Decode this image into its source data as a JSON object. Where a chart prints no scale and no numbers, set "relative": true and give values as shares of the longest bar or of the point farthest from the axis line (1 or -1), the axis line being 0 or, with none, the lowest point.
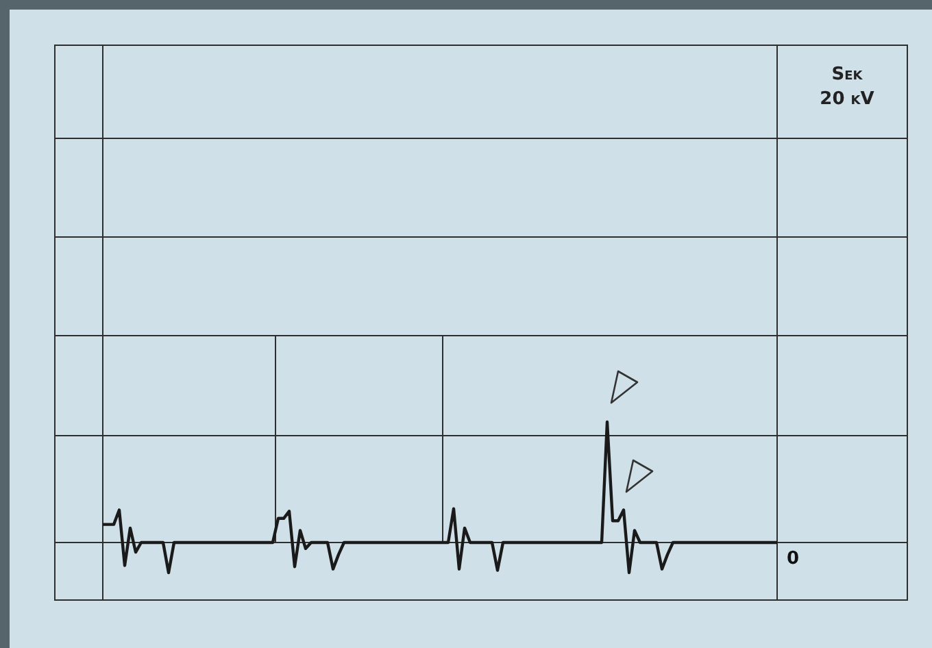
{
  "chart_data": {
    "type": "line",
    "title": "Sek",
    "subtitle": "20 kV",
    "annotations": [
      "0"
    ],
    "relative": true,
    "grid": true,
    "legend": false,
    "marker": "none",
    "line_style": "solid",
    "categories": [
      null,
      null,
      null,
      null,
      null,
      null,
      null,
      null,
      null,
      null,
      null,
      null,
      null,
      null,
      null,
      null,
      null,
      null,
      null,
      null,
      null,
      null,
      null,
      null,
      null,
      null,
      null,
      null,
      null,
      null,
      null,
      null,
      null,
      null,
      null,
      null,
      null,
      null,
      null,
      null,
      null,
      null,
      null,
      null,
      null,
      null,
      null,
      null,
      null,
      null,
      null,
      null,
      null,
      null,
      null,
      null,
      null,
      null,
      null,
      null,
      null,
      null,
      null,
      null,
      null,
      null,
      null,
      null,
      null,
      null,
      null,
      null,
      null,
      null,
      null,
      null,
      null,
      null,
      null,
      null,
      null,
      null,
      null,
      null,
      null,
      null,
      null,
      null,
      null,
      null,
      null,
      null,
      null,
      null,
      null,
      null,
      null,
      null,
      null,
      null,
      null,
      null,
      null,
      null,
      null,
      null,
      null,
      null,
      null,
      null,
      null,
      null,
      null,
      null,
      null,
      null,
      null,
      null,
      null,
      null,
      null,
      null,
      null,
      null
    ],
    "series": [
      {
        "color": "#1a1a1a",
        "values": [
          0.15,
          0.15,
          0.15,
          0.27,
          -0.19,
          0.12,
          -0.08,
          0,
          0,
          0,
          0,
          0,
          -0.25,
          0,
          0,
          0,
          0,
          0,
          0,
          0,
          0,
          0,
          0,
          0,
          0,
          0,
          0,
          0,
          0,
          0,
          0,
          0,
          0.2,
          0.2,
          0.26,
          -0.2,
          0.1,
          -0.05,
          0,
          0,
          0,
          0,
          -0.22,
          -0.1,
          0,
          0,
          0,
          0,
          0,
          0,
          0,
          0,
          0,
          0,
          0,
          0,
          0,
          0,
          0,
          0,
          0,
          0,
          0,
          0,
          0.28,
          -0.22,
          0.12,
          0,
          0,
          0,
          0,
          0,
          -0.23,
          0,
          0,
          0,
          0,
          0,
          0,
          0,
          0,
          0,
          0,
          0,
          0,
          0,
          0,
          0,
          0,
          0,
          0,
          0,
          1,
          0.18,
          0.18,
          0.27,
          -0.25,
          0.1,
          0,
          0,
          0,
          0,
          -0.22,
          -0.1,
          0,
          0,
          0,
          0,
          0,
          0,
          0,
          0,
          0,
          0,
          0,
          0,
          0,
          0,
          0,
          0,
          0,
          0,
          0,
          0
        ]
      }
    ]
  }
}
